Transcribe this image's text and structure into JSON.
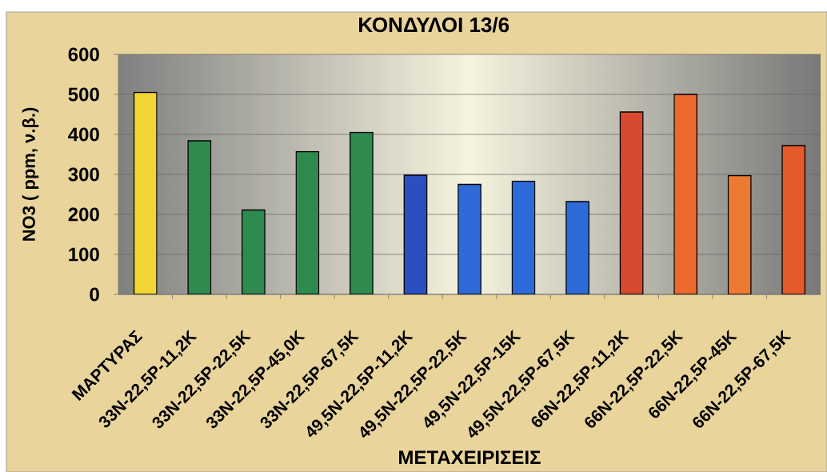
{
  "chart_data": {
    "type": "bar",
    "title": "ΚΟΝΔΥΛΟΙ 13/6",
    "xlabel": "ΜΕΤΑΧΕΙΡΙΣΕΙΣ",
    "ylabel": "NO3 ( ppm, ν.β.)",
    "categories": [
      "ΜΑΡΤΥΡΑΣ",
      "33N-22,5P-11,2K",
      "33N-22,5P-22,5K",
      "33N-22,5P-45,0K",
      "33N-22,5P-67,5K",
      "49,5N-22,5P-11,2K",
      "49,5N-22,5P-22,5K",
      "49,5N-22,5P-15K",
      "49,5N-22,5P-67,5K",
      "66N-22,5P-11,2K",
      "66N-22,5P-22,5K",
      "66N-22,5P-45K",
      "66N-22,5P-67,5K"
    ],
    "values": [
      505,
      384,
      211,
      357,
      405,
      298,
      275,
      283,
      232,
      456,
      500,
      297,
      372
    ],
    "colors": [
      "#f2d535",
      "#2e8a4e",
      "#2e8a4e",
      "#2e8a4e",
      "#2e8a4e",
      "#2a4fc0",
      "#2f6bd8",
      "#2f6bd8",
      "#2f6bd8",
      "#d84a30",
      "#ec6a2e",
      "#ec7a32",
      "#e55a2a"
    ],
    "ylim": [
      0,
      600
    ],
    "yticks": [
      0,
      100,
      200,
      300,
      400,
      500,
      600
    ],
    "grid": "y"
  }
}
